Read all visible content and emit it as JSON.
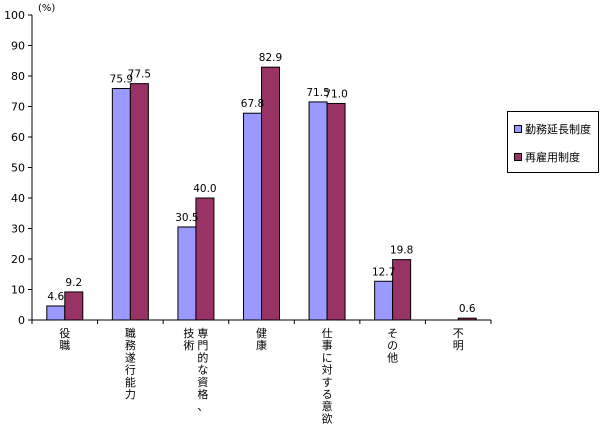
{
  "chart_data": {
    "type": "bar",
    "unit_label": "(%)",
    "categories": [
      [
        "役",
        "職"
      ],
      [
        "職",
        "務",
        "遂",
        "行",
        "能",
        "力"
      ],
      [
        "技",
        "術"
      ],
      [
        "健",
        "康"
      ],
      [
        "仕",
        "事",
        "に",
        "対",
        "す",
        "る",
        "意",
        "欲"
      ],
      [
        "そ",
        "の",
        "他"
      ],
      [
        "不",
        "明"
      ]
    ],
    "categories_col2": [
      null,
      null,
      [
        "専",
        "門",
        "的",
        "な",
        "資",
        "格",
        "、"
      ],
      null,
      null,
      null,
      null
    ],
    "series": [
      {
        "name": "勤務延長制度",
        "color": "#9999ff",
        "values": [
          4.6,
          75.9,
          30.5,
          67.8,
          71.5,
          12.7,
          null
        ],
        "labels": [
          "4.6",
          "75.9",
          "30.5",
          "67.8",
          "71.5",
          "12.7",
          ""
        ]
      },
      {
        "name": "再雇用制度",
        "color": "#993366",
        "values": [
          9.2,
          77.5,
          40.0,
          82.9,
          71.0,
          19.8,
          0.6
        ],
        "labels": [
          "9.2",
          "77.5",
          "40.0",
          "82.9",
          "71.0",
          "19.8",
          "0.6"
        ]
      }
    ],
    "ylim": [
      0,
      100
    ],
    "yticks": [
      "0",
      "10",
      "20",
      "30",
      "40",
      "50",
      "60",
      "70",
      "80",
      "90",
      "100"
    ],
    "grid": false,
    "legend_position": "right"
  }
}
